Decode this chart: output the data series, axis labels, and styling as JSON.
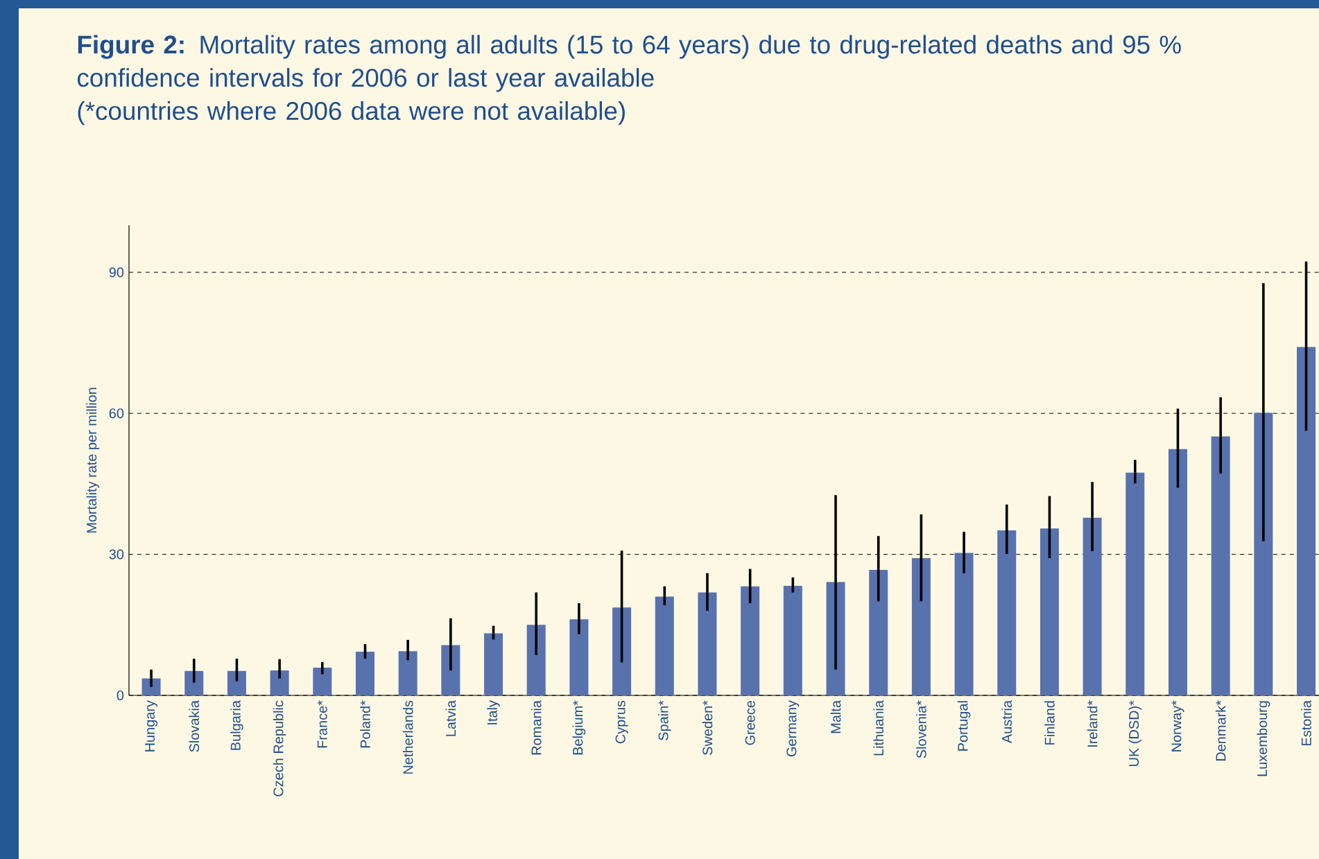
{
  "chart_data": {
    "type": "bar",
    "title": "**Figure 2:** Mortality rates among all adults (15 to 64 years) due to drug-related deaths and 95 % confidence intervals for 2006 or last year available",
    "subtitle": "(*countries where 2006 data were not available)",
    "ylabel": "Mortality rate per million",
    "categories": [
      "Hungary",
      "Slovakia",
      "Bulgaria",
      "Czech Republic",
      "France*",
      "Poland*",
      "Netherlands",
      "Latvia",
      "Italy",
      "Romania",
      "Belgium*",
      "Cyprus",
      "Spain*",
      "Sweden*",
      "Greece",
      "Germany",
      "Malta",
      "Lithuania",
      "Slovenia*",
      "Portugal",
      "Austria",
      "Finland",
      "Ireland*",
      "UK (DSD)*",
      "Norway*",
      "Denmark*",
      "Luxembourg",
      "Estonia"
    ],
    "values": [
      3.6,
      5.2,
      5.2,
      5.3,
      5.9,
      9.3,
      9.4,
      10.7,
      13.2,
      15.0,
      16.2,
      18.7,
      21.0,
      21.9,
      23.2,
      23.3,
      24.1,
      26.7,
      29.2,
      30.3,
      35.1,
      35.5,
      37.8,
      47.4,
      52.4,
      55.1,
      60.1,
      74.1
    ],
    "errors": [
      [
        1.8,
        5.5
      ],
      [
        2.7,
        7.8
      ],
      [
        3.0,
        7.8
      ],
      [
        3.6,
        7.7
      ],
      [
        4.5,
        7.1
      ],
      [
        7.8,
        10.9
      ],
      [
        7.5,
        11.8
      ],
      [
        5.3,
        16.4
      ],
      [
        11.9,
        14.8
      ],
      [
        8.6,
        21.9
      ],
      [
        13.0,
        19.6
      ],
      [
        7.0,
        30.8
      ],
      [
        19.2,
        23.2
      ],
      [
        18.0,
        26.0
      ],
      [
        19.6,
        26.9
      ],
      [
        21.9,
        25.1
      ],
      [
        5.5,
        42.6
      ],
      [
        20.0,
        33.9
      ],
      [
        20.0,
        38.5
      ],
      [
        26.0,
        34.8
      ],
      [
        30.1,
        40.6
      ],
      [
        29.2,
        42.4
      ],
      [
        30.7,
        45.4
      ],
      [
        45.1,
        50.1
      ],
      [
        44.2,
        61.0
      ],
      [
        47.2,
        63.4
      ],
      [
        32.8,
        87.7
      ],
      [
        56.3,
        92.3
      ]
    ],
    "color": "#5872ae",
    "ylim": [
      0,
      100
    ],
    "yticks": [
      0,
      30,
      60,
      90
    ],
    "grid": "y"
  }
}
